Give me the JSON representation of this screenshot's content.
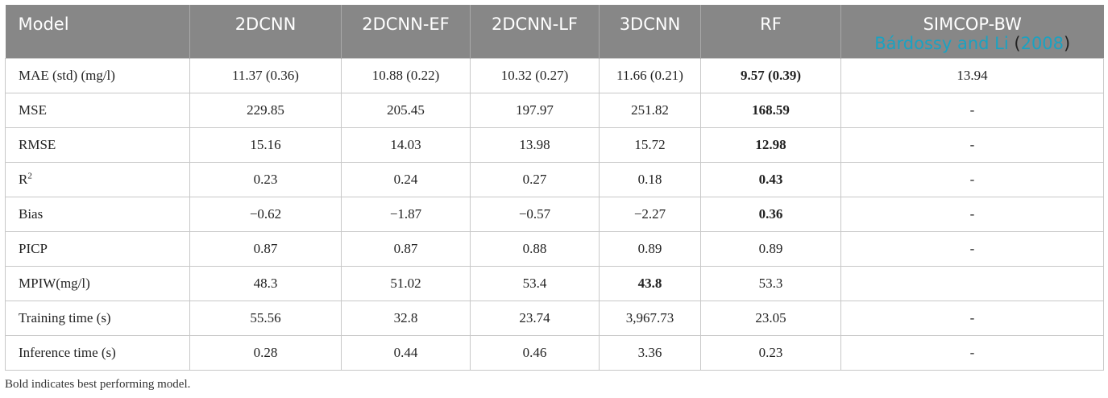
{
  "header": {
    "col0": "Model",
    "col1": "2DCNN",
    "col2": "2DCNN-EF",
    "col3": "2DCNN-LF",
    "col4": "3DCNN",
    "col5": "RF",
    "col6": "SIMCOP-BW",
    "col6_cite_authors": "Bárdossy and Li",
    "col6_cite_open": "(",
    "col6_cite_year": "2008",
    "col6_cite_close": ")"
  },
  "rows": [
    {
      "label": "MAE (std) (mg/l)",
      "c1": "11.37 (0.36)",
      "c2": "10.88 (0.22)",
      "c3": "10.32 (0.27)",
      "c4": "11.66 (0.21)",
      "c5": "9.57 (0.39)",
      "c6": "13.94"
    },
    {
      "label": "MSE",
      "c1": "229.85",
      "c2": "205.45",
      "c3": "197.97",
      "c4": "251.82",
      "c5": "168.59",
      "c6": "-"
    },
    {
      "label": "RMSE",
      "c1": "15.16",
      "c2": "14.03",
      "c3": "13.98",
      "c4": "15.72",
      "c5": "12.98",
      "c6": "-"
    },
    {
      "label": "R",
      "label_sup": "2",
      "c1": "0.23",
      "c2": "0.24",
      "c3": "0.27",
      "c4": "0.18",
      "c5": "0.43",
      "c6": "-"
    },
    {
      "label": "Bias",
      "c1": "−0.62",
      "c2": "−1.87",
      "c3": "−0.57",
      "c4": "−2.27",
      "c5": "0.36",
      "c6": "-"
    },
    {
      "label": "PICP",
      "c1": "0.87",
      "c2": "0.87",
      "c3": "0.88",
      "c4": "0.89",
      "c5": "0.89",
      "c6": "-"
    },
    {
      "label": "MPIW(mg/l)",
      "c1": "48.3",
      "c2": "51.02",
      "c3": "53.4",
      "c4": "43.8",
      "c5": "53.3",
      "c6": ""
    },
    {
      "label": "Training time (s)",
      "c1": "55.56",
      "c2": "32.8",
      "c3": "23.74",
      "c4": "3,967.73",
      "c5": "23.05",
      "c6": "-"
    },
    {
      "label": "Inference time (s)",
      "c1": "0.28",
      "c2": "0.44",
      "c3": "0.46",
      "c4": "3.36",
      "c5": "0.23",
      "c6": "-"
    }
  ],
  "footnote": "Bold indicates best performing model."
}
